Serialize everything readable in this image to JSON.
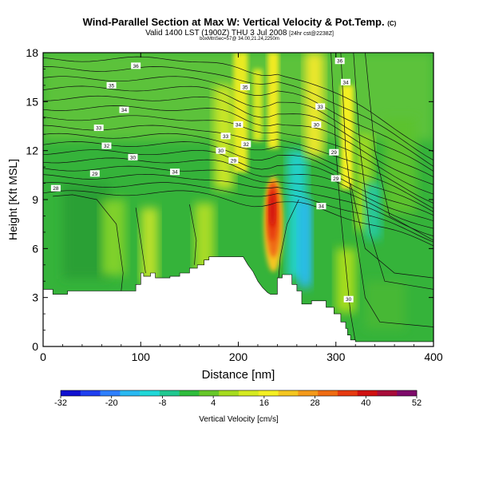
{
  "title": {
    "main": "Wind-Parallel Section at Max W: Vertical Velocity & Pot.Temp.",
    "copyright": "(C)",
    "valid": "Valid 1400 LST (1900Z) THU 3 Jul 2008",
    "valid_suffix": "[24hr cst@2238Z]",
    "tiny": "boxMtnSec=57@ 34.00,21.24,2250m"
  },
  "chart_data": {
    "type": "heatmap",
    "xlabel": "Distance [nm]",
    "ylabel": "Height [Kft MSL]",
    "xlim": [
      0,
      400
    ],
    "ylim": [
      0,
      18
    ],
    "xticks": [
      "0",
      "100",
      "200",
      "300",
      "400"
    ],
    "yticks": [
      "0",
      "3",
      "6",
      "9",
      "12",
      "15",
      "18"
    ],
    "colorbar": {
      "label": "Vertical Velocity [cm/s]",
      "ticks": [
        "-32",
        "-20",
        "-8",
        "4",
        "16",
        "28",
        "40",
        "52"
      ],
      "colors": [
        "#1010d0",
        "#1f3ff0",
        "#2f80ff",
        "#29b9f2",
        "#20d8d8",
        "#20c890",
        "#2ebd3c",
        "#66c728",
        "#a6dc1e",
        "#d5ea20",
        "#f4ef22",
        "#f4c620",
        "#f49a1a",
        "#ef6c12",
        "#e63a10",
        "#d01010",
        "#a80c3a",
        "#7e0a6a"
      ]
    },
    "terrain": [
      [
        0,
        3.5
      ],
      [
        10,
        3.5
      ],
      [
        10,
        3.2
      ],
      [
        25,
        3.2
      ],
      [
        25,
        3.4
      ],
      [
        95,
        3.4
      ],
      [
        95,
        3.8
      ],
      [
        100,
        3.8
      ],
      [
        100,
        4.5
      ],
      [
        103,
        4.5
      ],
      [
        103,
        4.3
      ],
      [
        110,
        4.3
      ],
      [
        110,
        4.5
      ],
      [
        115,
        4.5
      ],
      [
        115,
        4.2
      ],
      [
        130,
        4.2
      ],
      [
        130,
        4.3
      ],
      [
        140,
        4.3
      ],
      [
        140,
        4.5
      ],
      [
        150,
        4.5
      ],
      [
        150,
        4.8
      ],
      [
        158,
        4.8
      ],
      [
        158,
        5.0
      ],
      [
        165,
        5.0
      ],
      [
        165,
        5.3
      ],
      [
        170,
        5.3
      ],
      [
        170,
        5.5
      ],
      [
        205,
        5.5
      ],
      [
        210,
        5.0
      ],
      [
        215,
        4.6
      ],
      [
        220,
        4.0
      ],
      [
        225,
        3.6
      ],
      [
        230,
        3.3
      ],
      [
        233,
        3.2
      ],
      [
        240,
        3.2
      ],
      [
        240,
        4.2
      ],
      [
        245,
        4.2
      ],
      [
        245,
        4.4
      ],
      [
        255,
        4.4
      ],
      [
        255,
        3.8
      ],
      [
        260,
        3.8
      ],
      [
        260,
        3.4
      ],
      [
        265,
        3.4
      ],
      [
        265,
        2.6
      ],
      [
        275,
        2.6
      ],
      [
        275,
        2.8
      ],
      [
        290,
        2.8
      ],
      [
        290,
        2.4
      ],
      [
        298,
        2.4
      ],
      [
        298,
        2.0
      ],
      [
        305,
        2.0
      ],
      [
        305,
        1.5
      ],
      [
        310,
        1.5
      ],
      [
        310,
        1.1
      ],
      [
        312,
        1.1
      ],
      [
        312,
        0.7
      ],
      [
        315,
        0.7
      ],
      [
        315,
        0.4
      ],
      [
        320,
        0.4
      ],
      [
        320,
        0.3
      ],
      [
        400,
        0.3
      ]
    ],
    "theta_labels": [
      {
        "text": "36",
        "x": 95,
        "y": 17.2
      },
      {
        "text": "35",
        "x": 70,
        "y": 16.0
      },
      {
        "text": "34",
        "x": 83,
        "y": 14.5
      },
      {
        "text": "33",
        "x": 57,
        "y": 13.4
      },
      {
        "text": "32",
        "x": 65,
        "y": 12.3
      },
      {
        "text": "30",
        "x": 92,
        "y": 11.6
      },
      {
        "text": "29",
        "x": 53,
        "y": 10.6
      },
      {
        "text": "28",
        "x": 13,
        "y": 9.7
      },
      {
        "text": "34",
        "x": 135,
        "y": 10.7
      },
      {
        "text": "35",
        "x": 207,
        "y": 15.9
      },
      {
        "text": "34",
        "x": 200,
        "y": 13.6
      },
      {
        "text": "33",
        "x": 187,
        "y": 12.9
      },
      {
        "text": "32",
        "x": 208,
        "y": 12.4
      },
      {
        "text": "30",
        "x": 182,
        "y": 12.0
      },
      {
        "text": "29",
        "x": 195,
        "y": 11.4
      },
      {
        "text": "36",
        "x": 304,
        "y": 17.5
      },
      {
        "text": "34",
        "x": 310,
        "y": 16.2
      },
      {
        "text": "33",
        "x": 284,
        "y": 14.7
      },
      {
        "text": "30",
        "x": 280,
        "y": 13.6
      },
      {
        "text": "29",
        "x": 298,
        "y": 11.9
      },
      {
        "text": "29",
        "x": 300,
        "y": 10.3
      },
      {
        "text": "34",
        "x": 285,
        "y": 8.6
      },
      {
        "text": "30",
        "x": 313,
        "y": 2.9
      }
    ]
  }
}
